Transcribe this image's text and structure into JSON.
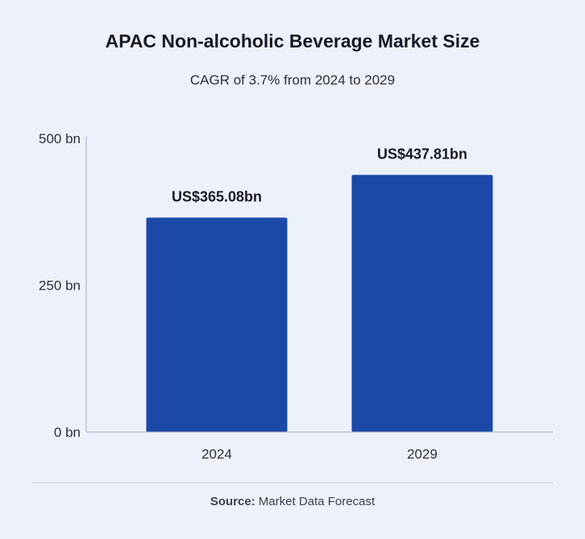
{
  "header": {
    "title": "APAC Non-alcoholic Beverage Market Size",
    "subtitle": "CAGR of 3.7% from 2024 to 2029"
  },
  "source": {
    "label": "Source:",
    "text": "Market Data Forecast"
  },
  "colors": {
    "bar": "#1a49a8",
    "axis": "#a9afbb",
    "background": "#ecf1fb"
  },
  "chart_data": {
    "type": "bar",
    "title": "APAC Non-alcoholic Beverage Market Size",
    "subtitle": "CAGR of 3.7% from 2024 to 2029",
    "categories": [
      "2024",
      "2029"
    ],
    "values": [
      365.08,
      437.81
    ],
    "data_labels": [
      "US$365.08bn",
      "US$437.81bn"
    ],
    "ylim": [
      0,
      500
    ],
    "yticks": [
      0,
      250,
      500
    ],
    "ytick_labels": [
      "0 bn",
      "250 bn",
      "500 bn"
    ],
    "xlabel": "",
    "ylabel": "",
    "grid": false,
    "legend": "none"
  }
}
